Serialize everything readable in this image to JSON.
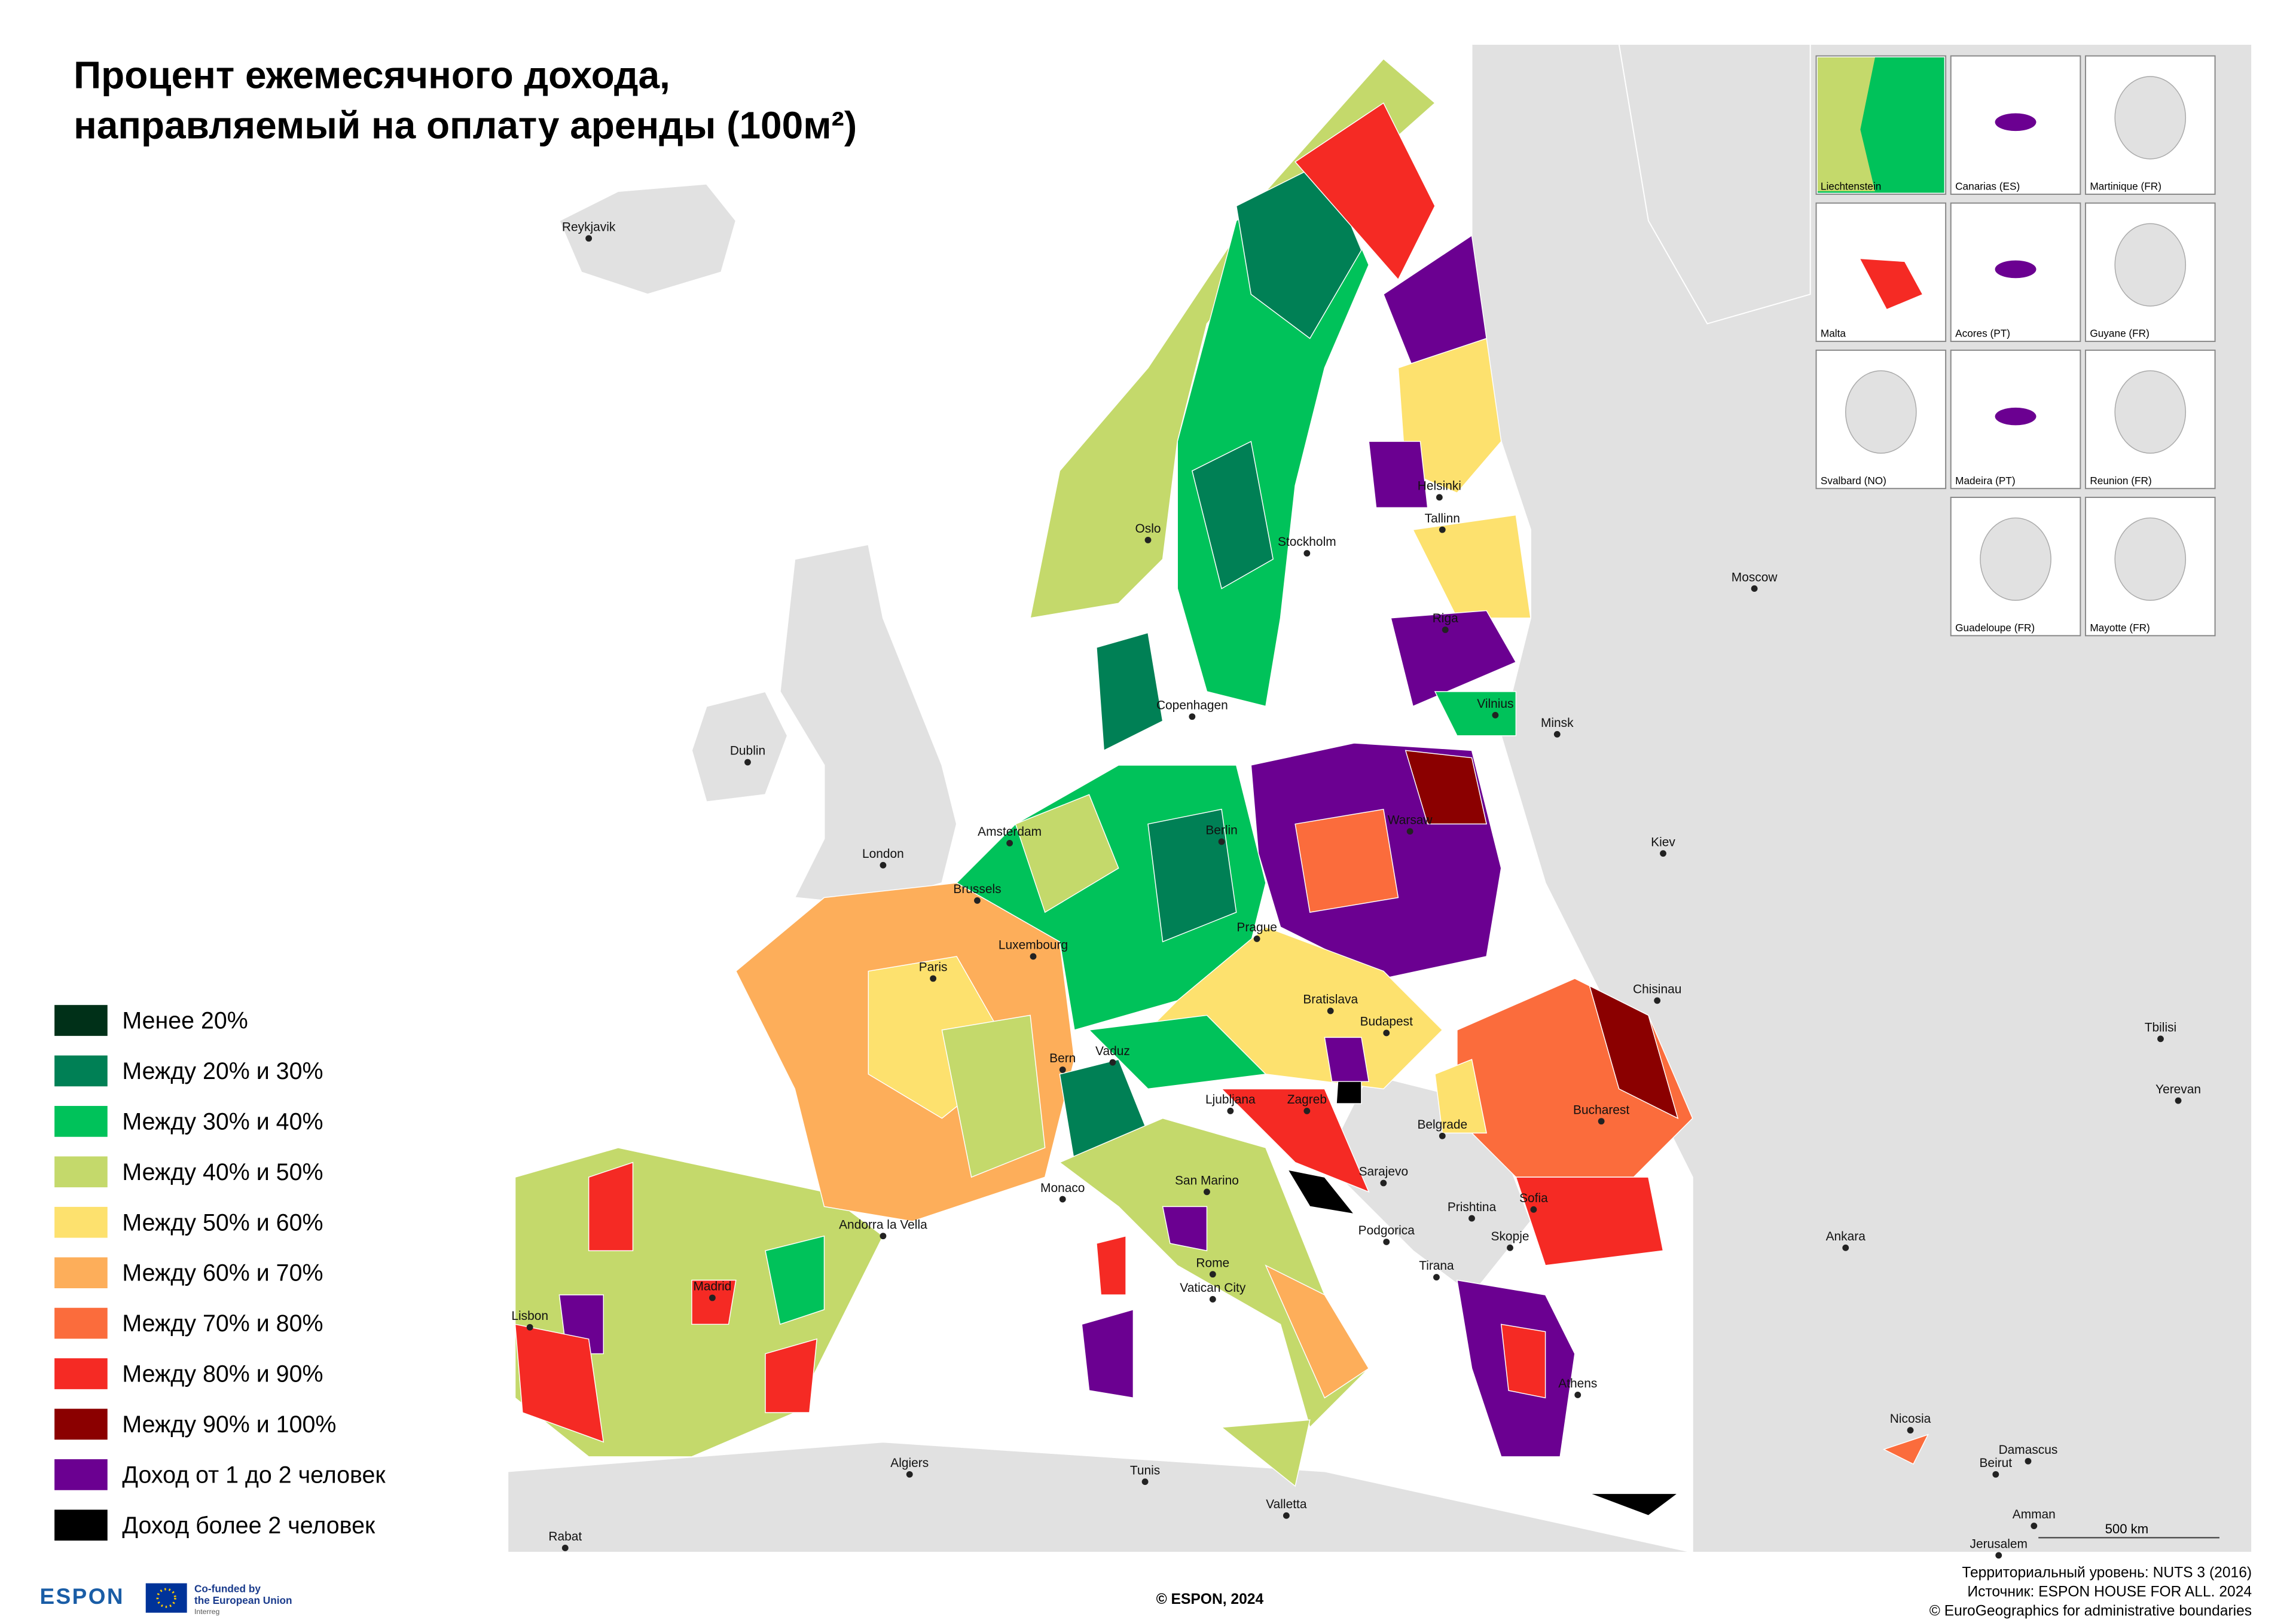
{
  "title": [
    "Процент ежемесячного дохода,",
    "направляемый на оплату аренды (100м²)"
  ],
  "legend": {
    "items": [
      {
        "label": "Менее 20%",
        "color": "#003018"
      },
      {
        "label": "Между 20% и 30%",
        "color": "#008055"
      },
      {
        "label": "Между 30% и 40%",
        "color": "#00c25a"
      },
      {
        "label": "Между 40% и 50%",
        "color": "#c4d96b"
      },
      {
        "label": "Между 50% и 60%",
        "color": "#fde16e"
      },
      {
        "label": "Между 60% и 70%",
        "color": "#fdae5a"
      },
      {
        "label": "Между 70% и 80%",
        "color": "#fb6c3c"
      },
      {
        "label": "Между 80% и 90%",
        "color": "#f52a24"
      },
      {
        "label": "Между 90% и 100%",
        "color": "#8b0000"
      },
      {
        "label": "Доход от 1 до 2 человек",
        "color": "#6b0091"
      },
      {
        "label": "Доход более 2 человек",
        "color": "#000000"
      }
    ]
  },
  "cities": [
    "Reykjavik",
    "Dublin",
    "London",
    "Amsterdam",
    "Brussels",
    "Luxembourg",
    "Paris",
    "Bern",
    "Vaduz",
    "Oslo",
    "Stockholm",
    "Helsinki",
    "Tallinn",
    "Riga",
    "Vilnius",
    "Minsk",
    "Moscow",
    "Copenhagen",
    "Berlin",
    "Warsaw",
    "Prague",
    "Kiev",
    "Bratislava",
    "Budapest",
    "Chisinau",
    "Ljubljana",
    "Zagreb",
    "Belgrade",
    "Bucharest",
    "Sarajevo",
    "Podgorica",
    "Prishtina",
    "Sofia",
    "Skopje",
    "Tirana",
    "Athens",
    "San Marino",
    "Monaco",
    "Andorra la Vella",
    "Madrid",
    "Lisbon",
    "Rome",
    "Vatican City",
    "Algiers",
    "Tunis",
    "Valletta",
    "Rabat",
    "Tbilisi",
    "Yerevan",
    "Ankara",
    "Nicosia",
    "Beirut",
    "Damascus",
    "Amman",
    "Jerusalem"
  ],
  "insets": [
    "Liechtenstein",
    "Canarias (ES)",
    "Martinique (FR)",
    "Malta",
    "Acores (PT)",
    "Guyane (FR)",
    "Svalbard (NO)",
    "Madeira (PT)",
    "Reunion (FR)",
    "Guadeloupe (FR)",
    "Mayotte (FR)"
  ],
  "scale_bar": "500 km",
  "footer": {
    "center": "© ESPON, 2024",
    "right": [
      "Территориальный уровень: NUTS 3 (2016)",
      "Источник: ESPON HOUSE FOR ALL. 2024",
      "© EuroGeographics for administrative boundaries"
    ]
  },
  "logo": {
    "name": "ESPON",
    "funding": [
      "Co-funded by",
      "the European Union"
    ],
    "program": "Interreg"
  }
}
